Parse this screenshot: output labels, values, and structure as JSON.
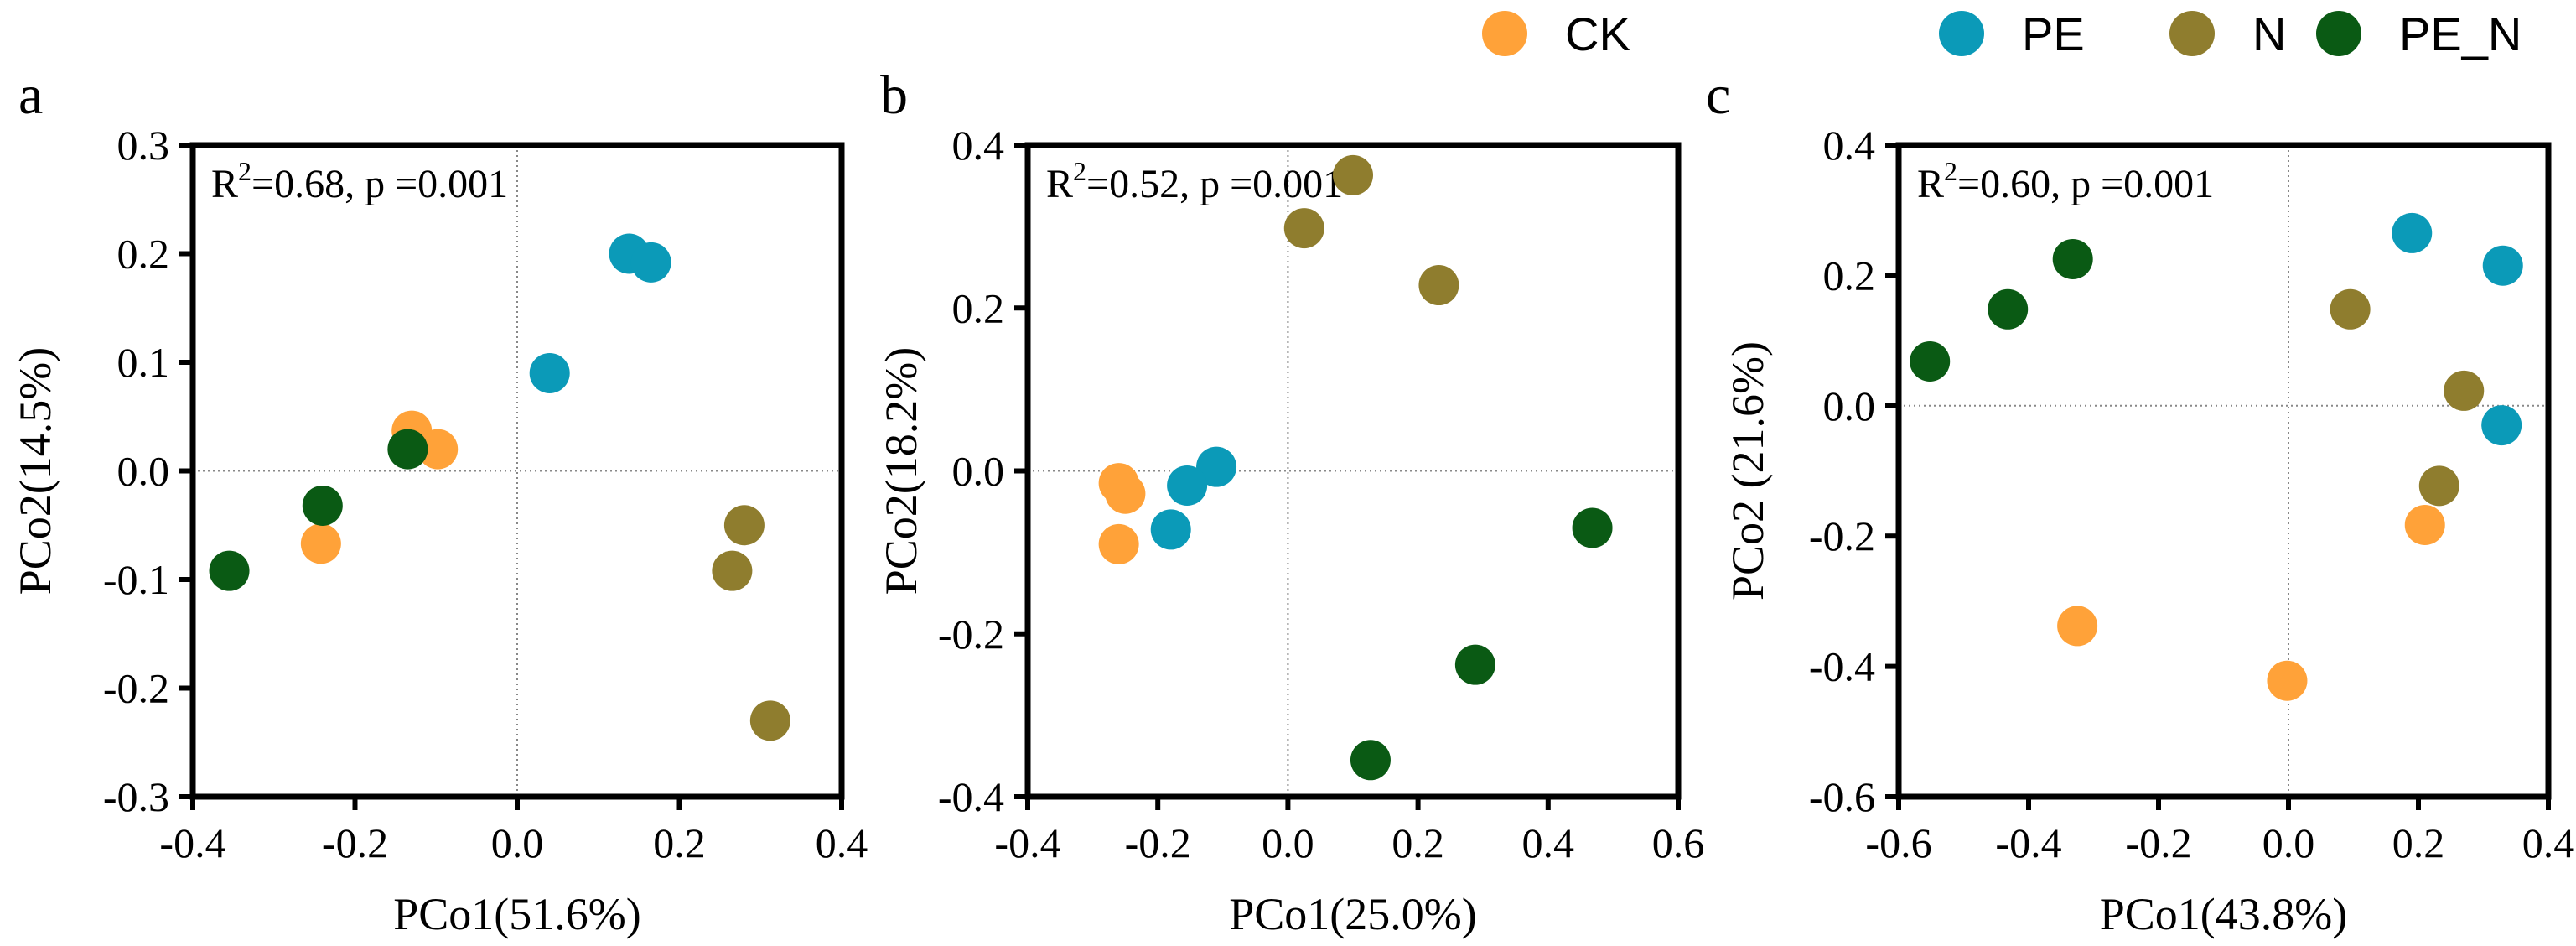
{
  "legend": {
    "items": [
      {
        "name": "CK",
        "color": "#FFA239"
      },
      {
        "name": "PE",
        "color": "#0B9AB8"
      },
      {
        "name": "N",
        "color": "#8F7D2E"
      },
      {
        "name": "PE_N",
        "color": "#0A5A14"
      }
    ]
  },
  "chart_data": [
    {
      "type": "scatter",
      "panel_label": "a",
      "annotation": {
        "prefix": "R",
        "sup": "2",
        "suffix": "=0.68, p =0.001"
      },
      "xlabel": "PCo1(51.6%)",
      "ylabel": "PCo2(14.5%)",
      "xlim": [
        -0.4,
        0.4
      ],
      "ylim": [
        -0.3,
        0.3
      ],
      "xticks": [
        "-0.4",
        "-0.2",
        "0.0",
        "0.2",
        "0.4"
      ],
      "yticks": [
        "0.3",
        "0.2",
        "0.1",
        "0.0",
        "-0.1",
        "-0.2",
        "-0.3"
      ],
      "series": [
        {
          "name": "CK",
          "points": [
            [
              -0.13,
              0.037
            ],
            [
              -0.098,
              0.02
            ],
            [
              -0.242,
              -0.067
            ]
          ]
        },
        {
          "name": "PE",
          "points": [
            [
              0.04,
              0.09
            ],
            [
              0.138,
              0.2
            ],
            [
              0.165,
              0.192
            ]
          ]
        },
        {
          "name": "N",
          "points": [
            [
              0.28,
              -0.05
            ],
            [
              0.265,
              -0.092
            ],
            [
              0.312,
              -0.23
            ]
          ]
        },
        {
          "name": "PE_N",
          "points": [
            [
              -0.135,
              0.02
            ],
            [
              -0.24,
              -0.032
            ],
            [
              -0.355,
              -0.092
            ]
          ]
        }
      ]
    },
    {
      "type": "scatter",
      "panel_label": "b",
      "annotation": {
        "prefix": "R",
        "sup": "2",
        "suffix": "=0.52, p =0.001"
      },
      "xlabel": "PCo1(25.0%)",
      "ylabel": "PCo2(18.2%)",
      "xlim": [
        -0.4,
        0.6
      ],
      "ylim": [
        -0.4,
        0.4
      ],
      "xticks": [
        "-0.4",
        "-0.2",
        "0.0",
        "0.2",
        "0.4",
        "0.6"
      ],
      "yticks": [
        "0.4",
        "0.2",
        "0.0",
        "-0.2",
        "-0.4"
      ],
      "series": [
        {
          "name": "CK",
          "points": [
            [
              -0.26,
              -0.015
            ],
            [
              -0.25,
              -0.028
            ],
            [
              -0.26,
              -0.09
            ]
          ]
        },
        {
          "name": "PE",
          "points": [
            [
              -0.11,
              0.005
            ],
            [
              -0.155,
              -0.018
            ],
            [
              -0.18,
              -0.072
            ]
          ]
        },
        {
          "name": "N",
          "points": [
            [
              0.1,
              0.363
            ],
            [
              0.025,
              0.298
            ],
            [
              0.232,
              0.228
            ]
          ]
        },
        {
          "name": "PE_N",
          "points": [
            [
              0.468,
              -0.07
            ],
            [
              0.288,
              -0.238
            ],
            [
              0.127,
              -0.355
            ]
          ]
        }
      ]
    },
    {
      "type": "scatter",
      "panel_label": "c",
      "annotation": {
        "prefix": "R",
        "sup": "2",
        "suffix": "=0.60, p =0.001"
      },
      "xlabel": "PCo1(43.8%)",
      "ylabel": "PCo2 (21.6%)",
      "xlim": [
        -0.6,
        0.4
      ],
      "ylim": [
        -0.6,
        0.4
      ],
      "xticks": [
        "-0.6",
        "-0.4",
        "-0.2",
        "0.0",
        "0.2",
        "0.4"
      ],
      "yticks": [
        "0.4",
        "0.2",
        "0.0",
        "-0.2",
        "-0.4",
        "-0.6"
      ],
      "series": [
        {
          "name": "CK",
          "points": [
            [
              0.21,
              -0.183
            ],
            [
              -0.325,
              -0.338
            ],
            [
              -0.002,
              -0.422
            ]
          ]
        },
        {
          "name": "PE",
          "points": [
            [
              0.19,
              0.265
            ],
            [
              0.33,
              0.215
            ],
            [
              0.328,
              -0.03
            ]
          ]
        },
        {
          "name": "N",
          "points": [
            [
              0.095,
              0.148
            ],
            [
              0.27,
              0.023
            ],
            [
              0.232,
              -0.123
            ]
          ]
        },
        {
          "name": "PE_N",
          "points": [
            [
              -0.332,
              0.225
            ],
            [
              -0.432,
              0.148
            ],
            [
              -0.552,
              0.068
            ]
          ]
        }
      ]
    }
  ]
}
